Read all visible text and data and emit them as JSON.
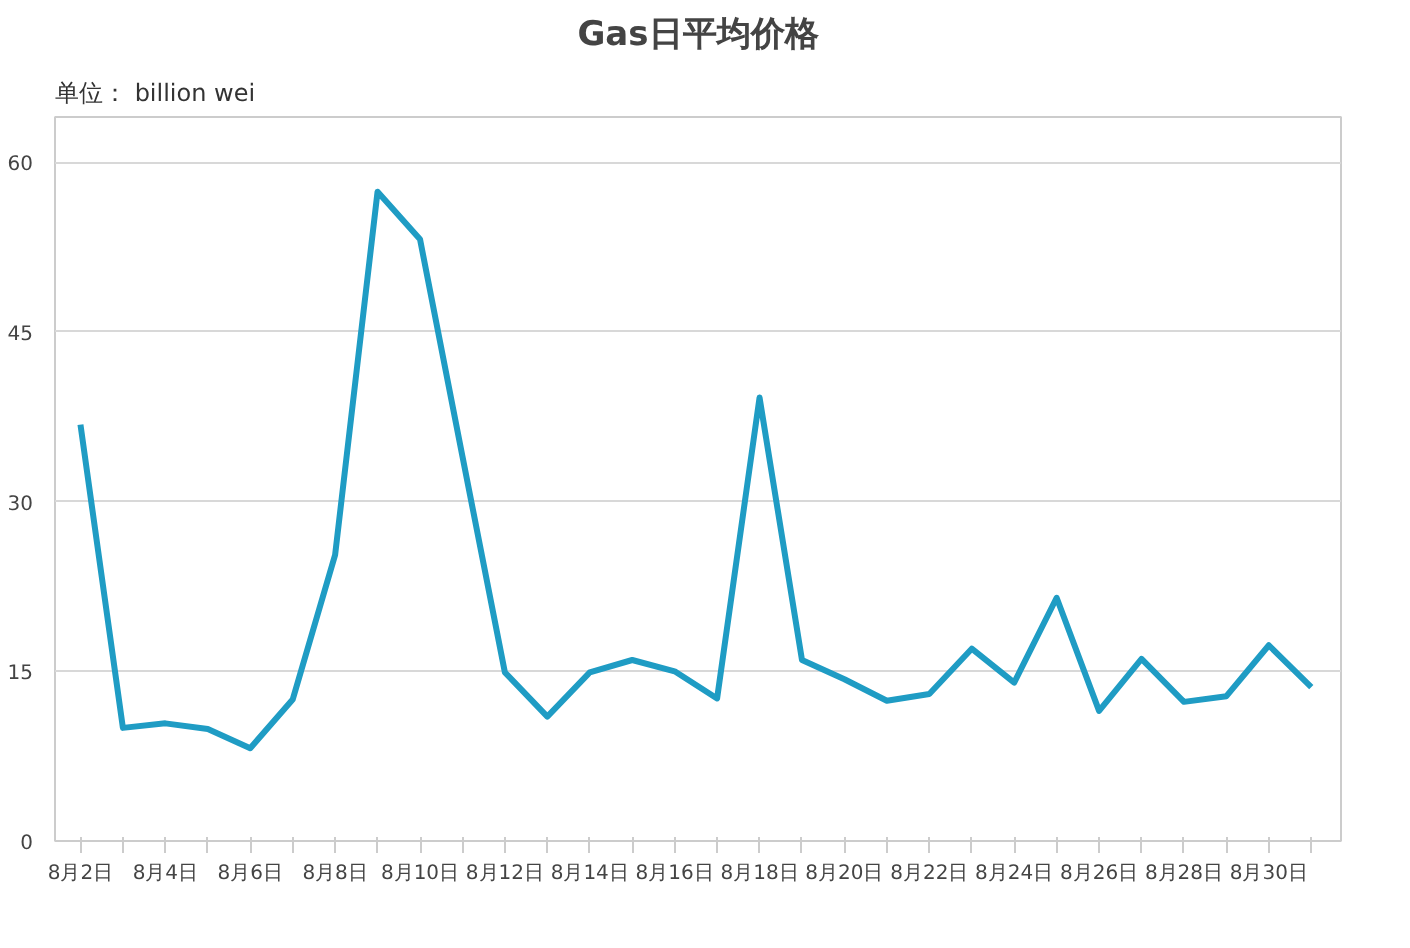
{
  "chart_data": {
    "type": "line",
    "title": "Gas日平均价格",
    "annotations": [
      "单位： billion wei"
    ],
    "categories": [
      "8月2日",
      null,
      "8月4日",
      null,
      "8月6日",
      null,
      "8月8日",
      null,
      "8月10日",
      null,
      "8月12日",
      null,
      "8月14日",
      null,
      "8月16日",
      null,
      "8月18日",
      null,
      "8月20日",
      null,
      "8月22日",
      null,
      "8月24日",
      null,
      "8月26日",
      null,
      "8月28日",
      null,
      "8月30日",
      null
    ],
    "series": [
      {
        "color": "#1f9cc4",
        "values": [
          36.8,
          10.0,
          10.4,
          9.9,
          8.2,
          12.5,
          25.3,
          57.4,
          53.2,
          34,
          14.9,
          11,
          14.9,
          16,
          15,
          12.6,
          39.2,
          16,
          14.3,
          12.4,
          13,
          17,
          14,
          21.5,
          11.5,
          16.1,
          12.3,
          12.8,
          17.3,
          13.6
        ]
      }
    ],
    "ylim": [
      0,
      64
    ],
    "yticks": [
      0,
      15,
      30,
      45,
      60
    ],
    "grid": "y",
    "marker": "none",
    "line_style": "solid"
  }
}
